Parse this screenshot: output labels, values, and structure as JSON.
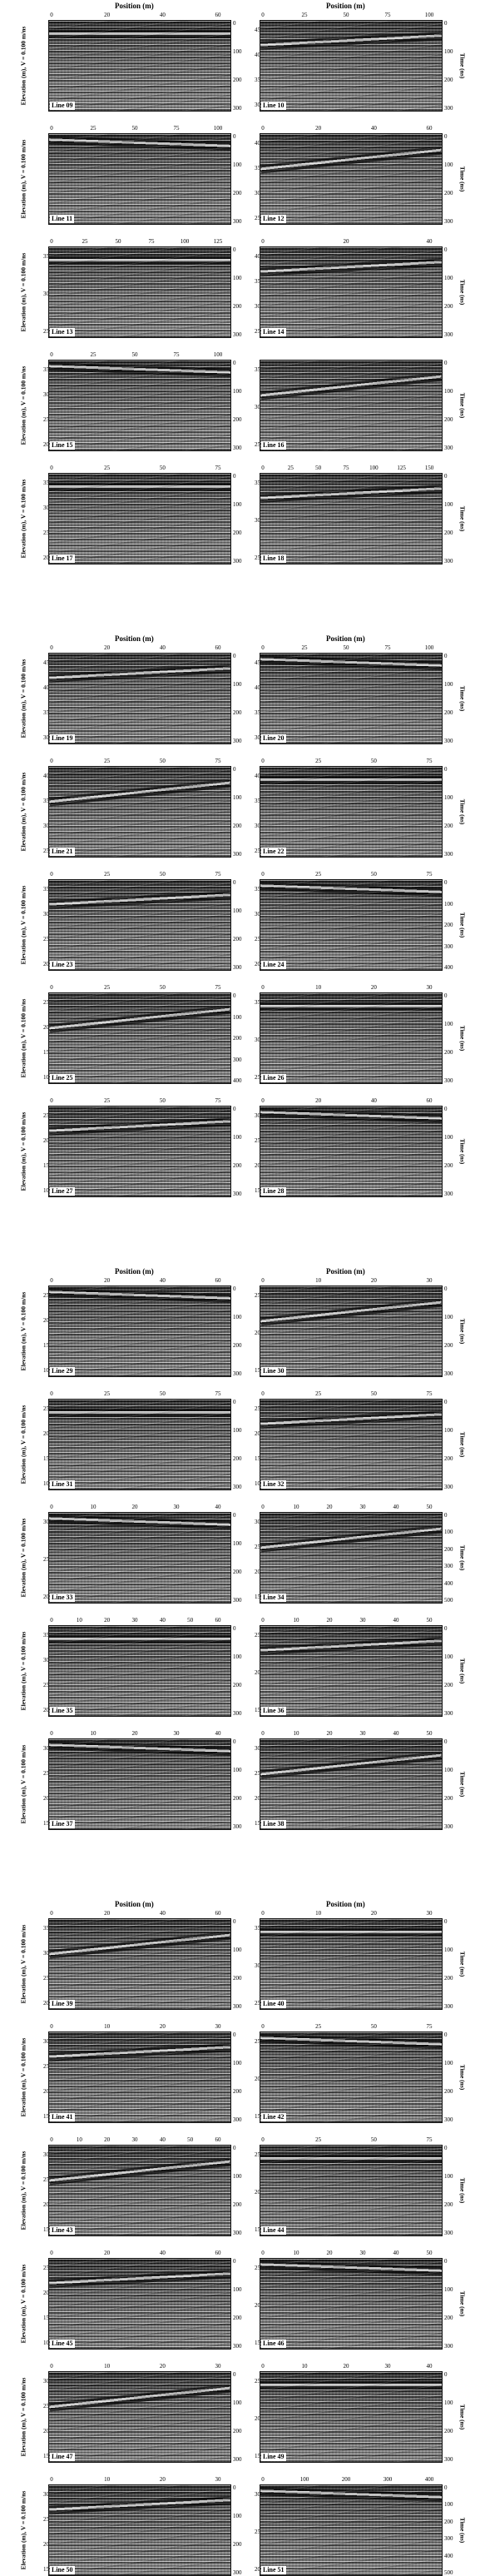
{
  "labels": {
    "position": "Position (m)",
    "elevation": "Elevation (m), V = 0.100 m/ns",
    "time": "Time (ns)"
  },
  "figures": [
    {
      "panels": [
        {
          "line": "Line 09",
          "xticks": [
            "0",
            "20",
            "40",
            "60"
          ],
          "lticks": [],
          "rticks": [
            "0",
            "100",
            "200",
            "300"
          ]
        },
        {
          "line": "Line 10",
          "xticks": [
            "0",
            "25",
            "50",
            "75",
            "100"
          ],
          "lticks": [
            "45",
            "40",
            "35",
            "30"
          ],
          "rticks": [
            "0",
            "100",
            "200",
            "300"
          ]
        },
        {
          "line": "Line 11",
          "xticks": [
            "0",
            "25",
            "50",
            "75",
            "100"
          ],
          "lticks": [],
          "rticks": [
            "0",
            "100",
            "200",
            "300"
          ]
        },
        {
          "line": "Line 12",
          "xticks": [
            "0",
            "20",
            "40",
            "60"
          ],
          "lticks": [
            "40",
            "35",
            "30",
            "25"
          ],
          "rticks": [
            "0",
            "100",
            "200",
            "300"
          ]
        },
        {
          "line": "Line 13",
          "xticks": [
            "0",
            "25",
            "50",
            "75",
            "100",
            "125"
          ],
          "lticks": [
            "35",
            "30",
            "25"
          ],
          "rticks": [
            "0",
            "100",
            "200",
            "300"
          ]
        },
        {
          "line": "Line 14",
          "xticks": [
            "0",
            "20",
            "40"
          ],
          "lticks": [
            "40",
            "35",
            "30",
            "25"
          ],
          "rticks": [
            "0",
            "100",
            "200",
            "300"
          ]
        },
        {
          "line": "Line 15",
          "xticks": [
            "0",
            "25",
            "50",
            "75",
            "100"
          ],
          "lticks": [
            "35",
            "30",
            "25",
            "20"
          ],
          "rticks": [
            "0",
            "100",
            "200",
            "300"
          ]
        },
        {
          "line": "Line 16",
          "xticks": [],
          "lticks": [
            "35",
            "30",
            "25"
          ],
          "rticks": [
            "0",
            "100",
            "200",
            "300"
          ]
        },
        {
          "line": "Line 17",
          "xticks": [
            "0",
            "25",
            "50",
            "75"
          ],
          "lticks": [
            "35",
            "30",
            "25",
            "20"
          ],
          "rticks": [
            "0",
            "100",
            "200",
            "300"
          ]
        },
        {
          "line": "Line 18",
          "xticks": [
            "0",
            "25",
            "50",
            "75",
            "100",
            "125",
            "150"
          ],
          "lticks": [
            "35",
            "30",
            "25"
          ],
          "rticks": [
            "0",
            "100",
            "200",
            "300"
          ]
        }
      ]
    },
    {
      "panels": [
        {
          "line": "Line 19",
          "xticks": [
            "0",
            "20",
            "40",
            "60"
          ],
          "lticks": [
            "45",
            "40",
            "35",
            "30"
          ],
          "rticks": [
            "0",
            "100",
            "200",
            "300"
          ]
        },
        {
          "line": "Line 20",
          "xticks": [
            "0",
            "25",
            "50",
            "75",
            "100"
          ],
          "lticks": [
            "45",
            "40",
            "35",
            "30"
          ],
          "rticks": [
            "0",
            "100",
            "200",
            "300"
          ]
        },
        {
          "line": "Line 21",
          "xticks": [
            "0",
            "25",
            "50",
            "75"
          ],
          "lticks": [
            "40",
            "35",
            "30",
            "25"
          ],
          "rticks": [
            "0",
            "100",
            "200",
            "300"
          ]
        },
        {
          "line": "Line 22",
          "xticks": [
            "0",
            "25",
            "50",
            "75"
          ],
          "lticks": [
            "40",
            "35",
            "30",
            "25"
          ],
          "rticks": [
            "0",
            "100",
            "200",
            "300"
          ]
        },
        {
          "line": "Line 23",
          "xticks": [
            "0",
            "25",
            "50",
            "75"
          ],
          "lticks": [
            "35",
            "30",
            "25",
            "20"
          ],
          "rticks": [
            "0",
            "100",
            "200",
            "300"
          ]
        },
        {
          "line": "Line 24",
          "xticks": [
            "0",
            "25",
            "50",
            "75"
          ],
          "lticks": [
            "35",
            "30",
            "25",
            "20"
          ],
          "rticks": [
            "0",
            "100",
            "200",
            "300",
            "400"
          ]
        },
        {
          "line": "Line 25",
          "xticks": [
            "0",
            "25",
            "50",
            "75"
          ],
          "lticks": [
            "25",
            "20",
            "15",
            "10"
          ],
          "rticks": [
            "0",
            "100",
            "200",
            "300",
            "400"
          ]
        },
        {
          "line": "Line 26",
          "xticks": [
            "0",
            "10",
            "20",
            "30"
          ],
          "lticks": [
            "35",
            "30",
            "25"
          ],
          "rticks": [
            "0",
            "100",
            "200",
            "300"
          ]
        },
        {
          "line": "Line 27",
          "xticks": [
            "0",
            "25",
            "50",
            "75"
          ],
          "lticks": [
            "25",
            "20",
            "15",
            "10"
          ],
          "rticks": [
            "0",
            "100",
            "200",
            "300"
          ]
        },
        {
          "line": "Line 28",
          "xticks": [
            "0",
            "20",
            "40",
            "60"
          ],
          "lticks": [
            "30",
            "25",
            "20",
            "15"
          ],
          "rticks": [
            "0",
            "100",
            "200",
            "300"
          ]
        }
      ]
    },
    {
      "panels": [
        {
          "line": "Line 29",
          "xticks": [
            "0",
            "20",
            "40",
            "60"
          ],
          "lticks": [
            "25",
            "20",
            "15",
            "10"
          ],
          "rticks": [
            "0",
            "100",
            "200",
            "300"
          ]
        },
        {
          "line": "Line 30",
          "xticks": [
            "0",
            "10",
            "20",
            "30"
          ],
          "lticks": [
            "25",
            "20",
            "15"
          ],
          "rticks": [
            "0",
            "100",
            "200",
            "300"
          ]
        },
        {
          "line": "Line 31",
          "xticks": [
            "0",
            "25",
            "50",
            "75"
          ],
          "lticks": [
            "25",
            "20",
            "15",
            "10"
          ],
          "rticks": [
            "0",
            "100",
            "200",
            "300"
          ]
        },
        {
          "line": "Line 32",
          "xticks": [
            "0",
            "25",
            "50",
            "75"
          ],
          "lticks": [
            "25",
            "20",
            "15",
            "10"
          ],
          "rticks": [
            "0",
            "100",
            "200",
            "300"
          ]
        },
        {
          "line": "Line 33",
          "xticks": [
            "0",
            "10",
            "20",
            "30",
            "40"
          ],
          "lticks": [
            "30",
            "25",
            "20"
          ],
          "rticks": [
            "0",
            "100",
            "200",
            "300"
          ]
        },
        {
          "line": "Line 34",
          "xticks": [
            "0",
            "10",
            "20",
            "30",
            "40",
            "50"
          ],
          "lticks": [
            "30",
            "25",
            "20",
            "15"
          ],
          "rticks": [
            "0",
            "100",
            "200",
            "300",
            "400",
            "500"
          ]
        },
        {
          "line": "Line 35",
          "xticks": [
            "0",
            "10",
            "20",
            "30",
            "40",
            "50",
            "60"
          ],
          "lticks": [
            "35",
            "30",
            "25",
            "20"
          ],
          "rticks": [
            "0",
            "100",
            "200",
            "300"
          ]
        },
        {
          "line": "Line 36",
          "xticks": [
            "0",
            "10",
            "20",
            "30",
            "40",
            "50"
          ],
          "lticks": [
            "25",
            "20",
            "15"
          ],
          "rticks": [
            "0",
            "100",
            "200",
            "300"
          ]
        },
        {
          "line": "Line 37",
          "xticks": [
            "0",
            "10",
            "20",
            "30",
            "40"
          ],
          "lticks": [
            "30",
            "25",
            "20",
            "15"
          ],
          "rticks": [
            "0",
            "100",
            "200",
            "300"
          ]
        },
        {
          "line": "Line 38",
          "xticks": [
            "0",
            "10",
            "20",
            "30",
            "40",
            "50"
          ],
          "lticks": [
            "30",
            "25",
            "20",
            "15"
          ],
          "rticks": [
            "0",
            "100",
            "200",
            "300"
          ]
        }
      ]
    },
    {
      "panels": [
        {
          "line": "Line 39",
          "xticks": [
            "0",
            "20",
            "40",
            "60"
          ],
          "lticks": [
            "35",
            "30",
            "25",
            "20"
          ],
          "rticks": [
            "0",
            "100",
            "200",
            "300"
          ]
        },
        {
          "line": "Line 40",
          "xticks": [
            "0",
            "10",
            "20",
            "30"
          ],
          "lticks": [
            "35",
            "30",
            "25"
          ],
          "rticks": [
            "0",
            "100",
            "200",
            "300"
          ]
        },
        {
          "line": "Line 41",
          "xticks": [
            "0",
            "10",
            "20",
            "30"
          ],
          "lticks": [
            "30",
            "25",
            "20",
            "15"
          ],
          "rticks": [
            "0",
            "100",
            "200",
            "300"
          ]
        },
        {
          "line": "Line 42",
          "xticks": [
            "0",
            "25",
            "50",
            "75"
          ],
          "lticks": [
            "25",
            "20",
            "15"
          ],
          "rticks": [
            "0",
            "100",
            "200",
            "300"
          ]
        },
        {
          "line": "Line 43",
          "xticks": [
            "0",
            "10",
            "20",
            "30",
            "40",
            "50",
            "60"
          ],
          "lticks": [
            "30",
            "25",
            "20",
            "15"
          ],
          "rticks": [
            "0",
            "100",
            "200",
            "300"
          ]
        },
        {
          "line": "Line 44",
          "xticks": [
            "0",
            "25",
            "50",
            "75"
          ],
          "lticks": [
            "25",
            "20",
            "15"
          ],
          "rticks": [
            "0",
            "100",
            "200",
            "300"
          ]
        },
        {
          "line": "Line 45",
          "xticks": [
            "0",
            "20",
            "40",
            "60"
          ],
          "lticks": [
            "25",
            "20",
            "15",
            "10"
          ],
          "rticks": [
            "0",
            "100",
            "200",
            "300"
          ]
        },
        {
          "line": "Line 46",
          "xticks": [
            "0",
            "10",
            "20",
            "30",
            "40",
            "50"
          ],
          "lticks": [
            "25",
            "20",
            "15"
          ],
          "rticks": [
            "0",
            "100",
            "200",
            "300"
          ]
        },
        {
          "line": "Line 47",
          "xticks": [
            "0",
            "10",
            "20",
            "30"
          ],
          "lticks": [
            "30",
            "25",
            "20",
            "15"
          ],
          "rticks": [
            "0",
            "100",
            "200",
            "300"
          ]
        },
        {
          "line": "Line 49",
          "xticks": [
            "0",
            "10",
            "20",
            "30",
            "40"
          ],
          "lticks": [
            "25",
            "20",
            "15"
          ],
          "rticks": [
            "0",
            "100",
            "200",
            "300"
          ]
        },
        {
          "line": "Line 50",
          "xticks": [
            "0",
            "10",
            "20",
            "30"
          ],
          "lticks": [
            "30",
            "25",
            "20",
            "15"
          ],
          "rticks": [
            "0",
            "100",
            "200",
            "300"
          ]
        },
        {
          "line": "Line 51",
          "xticks": [
            "0",
            "100",
            "200",
            "300",
            "400"
          ],
          "lticks": [
            "30",
            "25",
            "20"
          ],
          "rticks": [
            "0",
            "100",
            "200",
            "300",
            "400",
            "500"
          ]
        }
      ]
    }
  ]
}
